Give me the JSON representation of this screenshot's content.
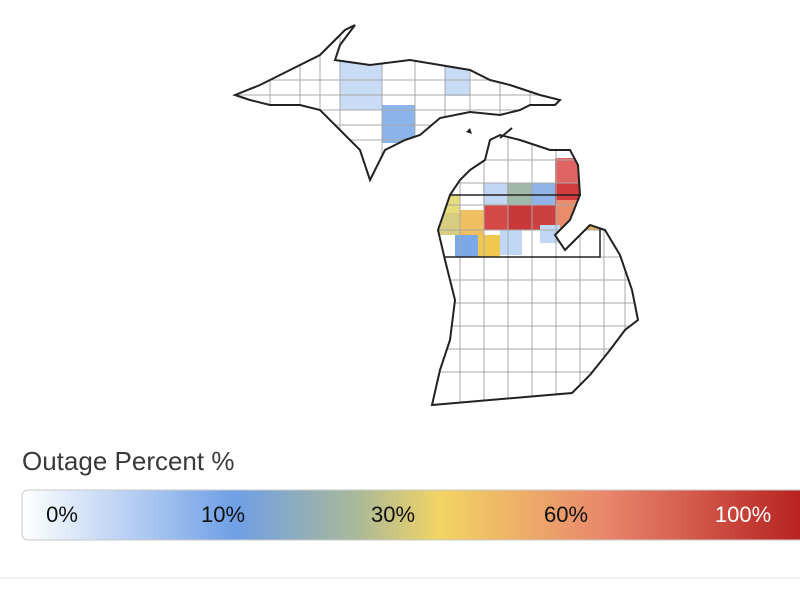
{
  "legend": {
    "title": "Outage Percent %",
    "labels": [
      "0%",
      "10%",
      "30%",
      "60%",
      "100%"
    ]
  }
}
